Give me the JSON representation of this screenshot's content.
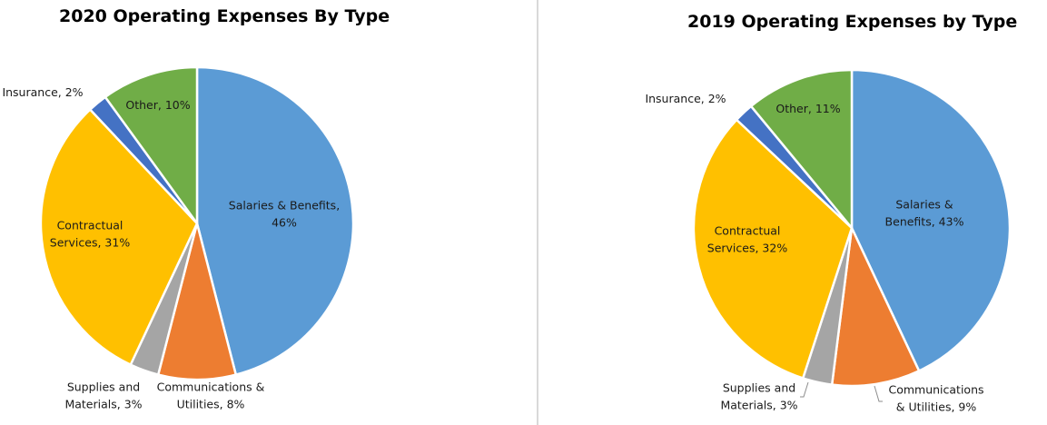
{
  "chart_data": [
    {
      "type": "pie",
      "title": "2020 Operating Expenses By Type",
      "slices": [
        {
          "label_lines": [
            "Salaries & Benefits,",
            "46%"
          ],
          "category": "Salaries & Benefits",
          "value": 46,
          "color": "#5b9bd5"
        },
        {
          "label_lines": [
            "Communications &",
            "Utilities, 8%"
          ],
          "category": "Communications & Utilities",
          "value": 8,
          "color": "#ed7d31"
        },
        {
          "label_lines": [
            "Supplies and",
            "Materials, 3%"
          ],
          "category": "Supplies and Materials",
          "value": 3,
          "color": "#a5a5a5"
        },
        {
          "label_lines": [
            "Contractual",
            "Services, 31%"
          ],
          "category": "Contractual Services",
          "value": 31,
          "color": "#ffc000"
        },
        {
          "label_lines": [
            "Insurance, 2%"
          ],
          "category": "Insurance",
          "value": 2,
          "color": "#4472c4"
        },
        {
          "label_lines": [
            "Other, 10%"
          ],
          "category": "Other",
          "value": 10,
          "color": "#70ad47"
        }
      ]
    },
    {
      "type": "pie",
      "title": "2019 Operating Expenses by Type",
      "slices": [
        {
          "label_lines": [
            "Salaries &",
            "Benefits, 43%"
          ],
          "category": "Salaries & Benefits",
          "value": 43,
          "color": "#5b9bd5"
        },
        {
          "label_lines": [
            "Communications",
            "& Utilities, 9%"
          ],
          "category": "Communications & Utilities",
          "value": 9,
          "color": "#ed7d31"
        },
        {
          "label_lines": [
            "Supplies and",
            "Materials, 3%"
          ],
          "category": "Supplies and Materials",
          "value": 3,
          "color": "#a5a5a5"
        },
        {
          "label_lines": [
            "Contractual",
            "Services, 32%"
          ],
          "category": "Contractual Services",
          "value": 32,
          "color": "#ffc000"
        },
        {
          "label_lines": [
            "Insurance, 2%"
          ],
          "category": "Insurance",
          "value": 2,
          "color": "#4472c4"
        },
        {
          "label_lines": [
            "Other, 11%"
          ],
          "category": "Other",
          "value": 11,
          "color": "#70ad47"
        }
      ]
    }
  ]
}
